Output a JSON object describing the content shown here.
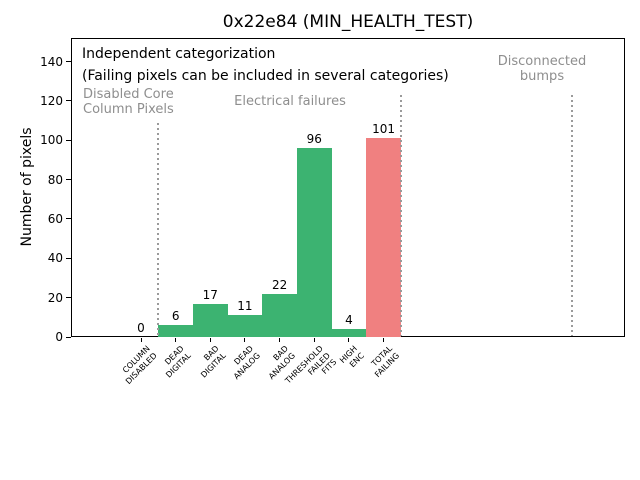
{
  "title": "0x22e84 (MIN_HEALTH_TEST)",
  "ylabel": "Number of pixels",
  "annotations": {
    "line1": "Independent categorization",
    "line2": "(Failing pixels can be included in several categories)",
    "region_disabled": "Disabled Core\nColumn Pixels",
    "region_electrical": "Electrical failures",
    "region_bumps": "Disconnected\nbumps"
  },
  "chart_data": {
    "type": "bar",
    "title": "0x22e84 (MIN_HEALTH_TEST)",
    "xlabel": "",
    "ylabel": "Number of pixels",
    "ylim": [
      0,
      152
    ],
    "yticks": [
      0,
      20,
      40,
      60,
      80,
      100,
      120,
      140
    ],
    "grid": false,
    "legend": null,
    "categories": [
      "COLUMN\nDISABLED",
      "DEAD\nDIGITAL",
      "BAD\nDIGITAL",
      "DEAD\nANALOG",
      "BAD\nANALOG",
      "THRESHOLD\nFAILED\nFITS",
      "HIGH\nENC",
      "TOTAL\nFAILING"
    ],
    "values": [
      0,
      6,
      17,
      11,
      22,
      96,
      4,
      101
    ],
    "value_labels": [
      "0",
      "6",
      "17",
      "11",
      "22",
      "96",
      "4",
      "101"
    ],
    "bar_colors": [
      "#3cb371",
      "#3cb371",
      "#3cb371",
      "#3cb371",
      "#3cb371",
      "#3cb371",
      "#3cb371",
      "#f08080"
    ],
    "separators_x": [
      0.5,
      7.5,
      12.45
    ],
    "annotations": [
      "Independent categorization",
      "(Failing pixels can be included in several categories)",
      "Disabled Core\nColumn Pixels",
      "Electrical failures",
      "Disconnected\nbumps"
    ],
    "colors": {
      "bar_green": "#3cb371",
      "bar_red": "#f08080",
      "region_text": "#8e8e8e",
      "separator_line": "#9a9a9a",
      "axis": "#000000"
    }
  }
}
